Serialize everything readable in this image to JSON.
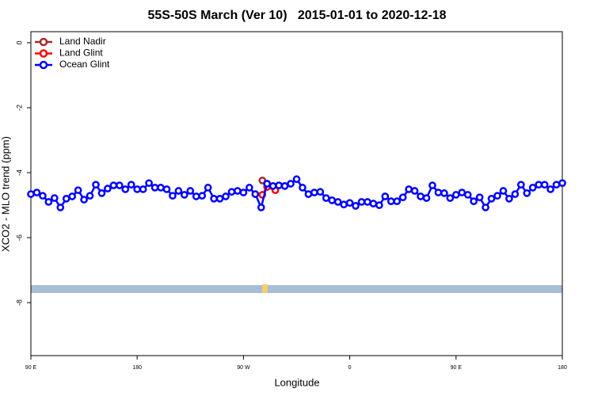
{
  "chart_data": {
    "type": "line",
    "title": "55S-50S March (Ver 10)   2015-01-01 to 2020-12-18",
    "xlabel": "Longitude",
    "ylabel": "XCO2 - MLO trend (ppm)",
    "xlim": [
      90,
      540
    ],
    "ylim": [
      -9.63,
      0.34
    ],
    "xticks": [
      {
        "value": 90,
        "label": "90 E"
      },
      {
        "value": 180,
        "label": "180"
      },
      {
        "value": 270,
        "label": "90 W"
      },
      {
        "value": 360,
        "label": "0"
      },
      {
        "value": 450,
        "label": "90 E"
      },
      {
        "value": 540,
        "label": "180"
      }
    ],
    "yticks": [
      0,
      -2,
      -4,
      -6,
      -8
    ],
    "grid": false,
    "legend": "top-left",
    "series": [
      {
        "name": "Land Nadir",
        "color": "#a52a2a",
        "x": [
          286,
          290
        ],
        "values": [
          -4.24,
          -4.34
        ]
      },
      {
        "name": "Land Glint",
        "color": "#ff0000",
        "x": [
          286,
          290,
          297
        ],
        "values": [
          -4.68,
          -4.44,
          -4.54
        ]
      },
      {
        "name": "Ocean Glint",
        "color": "#0000ff",
        "x": [
          90,
          95,
          100,
          105,
          110,
          115,
          120,
          125,
          130,
          135,
          140,
          145,
          150,
          155,
          160,
          165,
          170,
          175,
          180,
          185,
          190,
          195,
          200,
          205,
          210,
          215,
          220,
          225,
          230,
          235,
          240,
          245,
          250,
          255,
          260,
          265,
          270,
          275,
          280,
          285,
          290,
          295,
          300,
          305,
          310,
          315,
          320,
          325,
          330,
          335,
          340,
          345,
          350,
          355,
          360,
          365,
          370,
          375,
          380,
          385,
          390,
          395,
          400,
          405,
          410,
          415,
          420,
          425,
          430,
          435,
          440,
          445,
          450,
          455,
          460,
          465,
          470,
          475,
          480,
          485,
          490,
          495,
          500,
          505,
          510,
          515,
          520,
          525,
          530,
          535,
          540
        ],
        "values": [
          -4.66,
          -4.61,
          -4.71,
          -4.9,
          -4.78,
          -5.07,
          -4.8,
          -4.73,
          -4.54,
          -4.83,
          -4.71,
          -4.37,
          -4.63,
          -4.49,
          -4.39,
          -4.39,
          -4.51,
          -4.37,
          -4.51,
          -4.51,
          -4.32,
          -4.46,
          -4.46,
          -4.51,
          -4.71,
          -4.56,
          -4.68,
          -4.56,
          -4.73,
          -4.71,
          -4.46,
          -4.8,
          -4.8,
          -4.73,
          -4.59,
          -4.56,
          -4.61,
          -4.46,
          -4.66,
          -5.07,
          -4.34,
          -4.41,
          -4.39,
          -4.41,
          -4.34,
          -4.2,
          -4.46,
          -4.66,
          -4.61,
          -4.59,
          -4.78,
          -4.85,
          -4.9,
          -4.98,
          -4.93,
          -5.02,
          -4.9,
          -4.9,
          -4.95,
          -5.0,
          -4.73,
          -4.88,
          -4.88,
          -4.76,
          -4.51,
          -4.56,
          -4.73,
          -4.78,
          -4.39,
          -4.61,
          -4.63,
          -4.78,
          -4.68,
          -4.61,
          -4.68,
          -4.88,
          -4.76,
          -5.07,
          -4.8,
          -4.71,
          -4.56,
          -4.8,
          -4.66,
          -4.37,
          -4.63,
          -4.46,
          -4.37,
          -4.37,
          -4.51,
          -4.37,
          -4.32
        ]
      }
    ]
  }
}
